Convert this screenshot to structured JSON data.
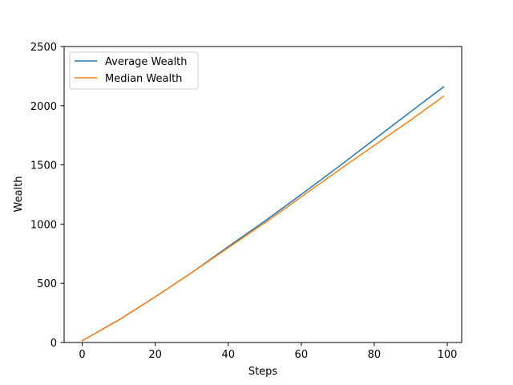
{
  "chart_data": {
    "type": "line",
    "title": "",
    "xlabel": "Steps",
    "ylabel": "Wealth",
    "xlim": [
      -4.95,
      103.95
    ],
    "ylim": [
      0,
      2500
    ],
    "xticks": [
      0,
      20,
      40,
      60,
      80,
      100
    ],
    "yticks": [
      0,
      500,
      1000,
      1500,
      2000,
      2500
    ],
    "grid": false,
    "legend_position": "top-left",
    "series": [
      {
        "name": "Average Wealth",
        "color": "#1f77b4",
        "x": [
          0,
          10,
          20,
          30,
          40,
          50,
          60,
          70,
          80,
          90,
          99
        ],
        "y": [
          15,
          190,
          385,
          590,
          810,
          1025,
          1250,
          1480,
          1715,
          1950,
          2160
        ]
      },
      {
        "name": "Median Wealth",
        "color": "#ff7f0e",
        "x": [
          0,
          10,
          20,
          30,
          40,
          50,
          60,
          70,
          80,
          90,
          99
        ],
        "y": [
          15,
          190,
          385,
          590,
          800,
          1010,
          1230,
          1450,
          1665,
          1880,
          2080
        ]
      }
    ]
  }
}
